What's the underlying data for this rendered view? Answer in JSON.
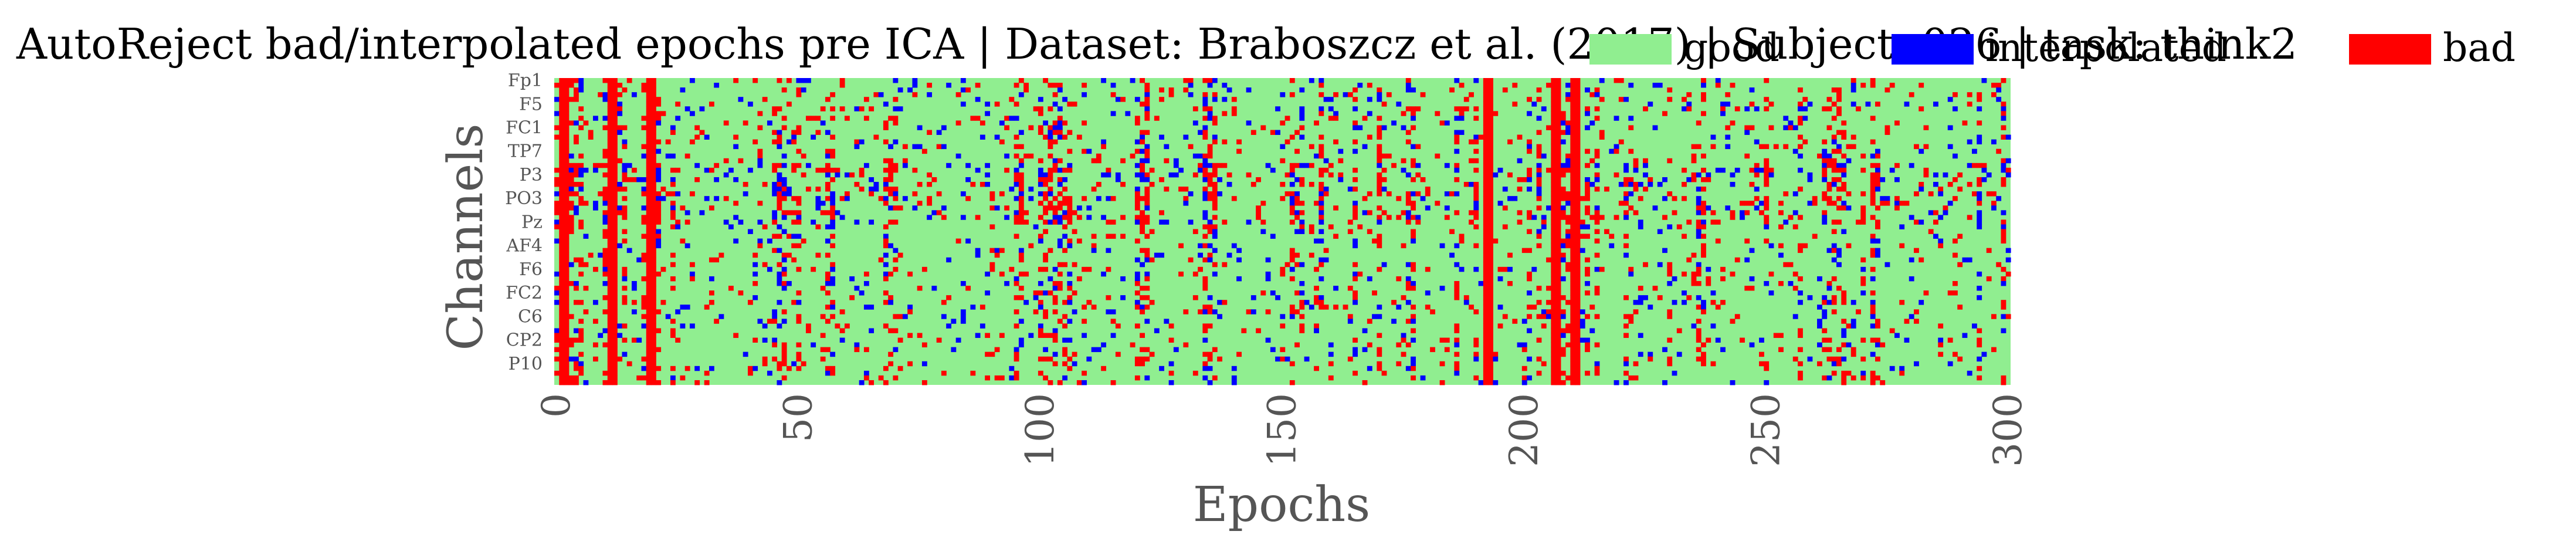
{
  "chart_data": {
    "type": "heatmap",
    "title": "AutoReject bad/interpolated epochs pre ICA | Dataset: Braboszcz et al. (2017) | Subject: 026 | task: think2",
    "xlabel": "Epochs",
    "ylabel": "Channels",
    "n_epochs": 301,
    "n_channels": 65,
    "xlim": [
      0,
      300
    ],
    "xticks": [
      0,
      50,
      100,
      150,
      200,
      250,
      300
    ],
    "yticklabels": [
      "Fp1",
      "F5",
      "FC1",
      "TP7",
      "P3",
      "PO3",
      "Pz",
      "AF4",
      "F6",
      "FC2",
      "C6",
      "CP2",
      "P10"
    ],
    "ytick_channel_index": [
      0,
      5,
      10,
      15,
      20,
      25,
      30,
      35,
      40,
      45,
      50,
      55,
      60
    ],
    "categories": [
      {
        "code": 0,
        "name": "good",
        "color": "#90ee90"
      },
      {
        "code": 1,
        "name": "interpolated",
        "color": "#0000ff"
      },
      {
        "code": 2,
        "name": "bad",
        "color": "#ff0000"
      }
    ],
    "bad_epochs_all_channels": [
      1,
      2,
      11,
      12,
      19,
      20,
      192,
      193,
      206,
      207,
      210,
      211
    ],
    "grid": false,
    "legend_position": "top-right"
  }
}
